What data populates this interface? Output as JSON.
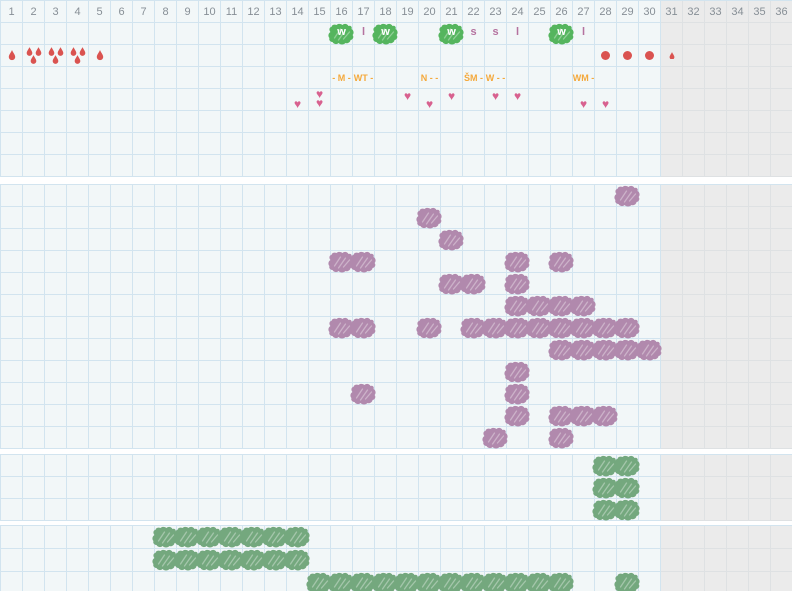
{
  "grid": {
    "columns": 36,
    "gray_from_column": 31,
    "day_numbers": [
      "1",
      "2",
      "3",
      "4",
      "5",
      "6",
      "7",
      "8",
      "9",
      "10",
      "11",
      "12",
      "13",
      "14",
      "15",
      "16",
      "17",
      "18",
      "19",
      "20",
      "21",
      "22",
      "23",
      "24",
      "25",
      "26",
      "27",
      "28",
      "29",
      "30",
      "31",
      "32",
      "33",
      "34",
      "35",
      "36"
    ]
  },
  "colors": {
    "cell_bg": "#f2f7f8",
    "grid_line": "#d2e4ef",
    "gray_bg": "#ebebeb",
    "gray_line": "#dee1e3",
    "day_number": "#878f96",
    "blood_red": "#da5350",
    "heart_pink": "#d8618f",
    "note_orange": "#f4a93c",
    "green": "#55b55e",
    "letter_mauve": "#b5729f",
    "purple": "#b189ad",
    "sage_green": "#74a87e"
  },
  "sections": [
    {
      "name": "cycle-days",
      "rows": [
        {
          "name": "day-numbers",
          "header": true
        },
        {
          "name": "events",
          "cells": [
            {
              "col": 16,
              "marker": "green-blob-letter",
              "label": "w"
            },
            {
              "col": 17,
              "marker": "letter",
              "label": "l"
            },
            {
              "col": 18,
              "marker": "green-blob-letter",
              "label": "w"
            },
            {
              "col": 21,
              "marker": "green-blob-letter",
              "label": "w"
            },
            {
              "col": 22,
              "marker": "letter",
              "label": "s"
            },
            {
              "col": 23,
              "marker": "letter",
              "label": "s"
            },
            {
              "col": 24,
              "marker": "letter",
              "label": "l"
            },
            {
              "col": 26,
              "marker": "green-blob-letter",
              "label": "w"
            },
            {
              "col": 27,
              "marker": "letter",
              "label": "l"
            }
          ]
        },
        {
          "name": "bleeding",
          "cells": [
            {
              "col": 1,
              "marker": "drops",
              "count": 1
            },
            {
              "col": 2,
              "marker": "drops",
              "count": 3
            },
            {
              "col": 3,
              "marker": "drops",
              "count": 3
            },
            {
              "col": 4,
              "marker": "drops",
              "count": 3
            },
            {
              "col": 5,
              "marker": "drops",
              "count": 1
            },
            {
              "col": 28,
              "marker": "dot"
            },
            {
              "col": 29,
              "marker": "dot"
            },
            {
              "col": 30,
              "marker": "dot"
            },
            {
              "col": 31,
              "marker": "drop-small"
            }
          ]
        },
        {
          "name": "notes",
          "cells": [
            {
              "col": 16,
              "marker": "note",
              "label": "- M -"
            },
            {
              "col": 17,
              "marker": "note",
              "label": "WT -"
            },
            {
              "col": 20,
              "marker": "note",
              "label": "N - -"
            },
            {
              "col": 22,
              "marker": "note",
              "label": "ŠM -"
            },
            {
              "col": 23,
              "marker": "note",
              "label": "W - -"
            },
            {
              "col": 27,
              "marker": "note",
              "label": "WM -"
            }
          ]
        },
        {
          "name": "hearts",
          "cells": [
            {
              "col": 14,
              "marker": "heart",
              "pos": "low"
            },
            {
              "col": 15,
              "marker": "heart-double"
            },
            {
              "col": 19,
              "marker": "heart",
              "pos": "high"
            },
            {
              "col": 20,
              "marker": "heart",
              "pos": "low"
            },
            {
              "col": 21,
              "marker": "heart",
              "pos": "high"
            },
            {
              "col": 23,
              "marker": "heart",
              "pos": "high"
            },
            {
              "col": 24,
              "marker": "heart",
              "pos": "high"
            },
            {
              "col": 27,
              "marker": "heart",
              "pos": "low"
            },
            {
              "col": 28,
              "marker": "heart",
              "pos": "low"
            }
          ]
        },
        {
          "name": "empty-row-1",
          "cells": []
        },
        {
          "name": "empty-row-2",
          "cells": []
        },
        {
          "name": "empty-row-3",
          "cells": []
        }
      ]
    },
    {
      "name": "purple-symptoms",
      "marker": "purple-blob",
      "rows_cols": [
        [
          29
        ],
        [
          20
        ],
        [
          21
        ],
        [
          16,
          17,
          24,
          26
        ],
        [
          21,
          22,
          24
        ],
        [
          24,
          25,
          26,
          27
        ],
        [
          16,
          17,
          20,
          22,
          23,
          24,
          25,
          26,
          27,
          28,
          29
        ],
        [
          26,
          27,
          28,
          29,
          30
        ],
        [
          24
        ],
        [
          17,
          24
        ],
        [
          24,
          26,
          27,
          28
        ],
        [
          23,
          26
        ]
      ]
    },
    {
      "name": "green-activity-a",
      "marker": "sage-blob",
      "rows_cols": [
        [
          28,
          29
        ],
        [
          28,
          29
        ],
        [
          28,
          29
        ]
      ]
    },
    {
      "name": "green-activity-b",
      "marker": "sage-blob",
      "rows_cols": [
        [
          8,
          9,
          10,
          11,
          12,
          13,
          14
        ],
        [
          8,
          9,
          10,
          11,
          12,
          13,
          14
        ],
        [
          15,
          16,
          17,
          18,
          19,
          20,
          21,
          22,
          23,
          24,
          25,
          26,
          29
        ]
      ]
    }
  ]
}
